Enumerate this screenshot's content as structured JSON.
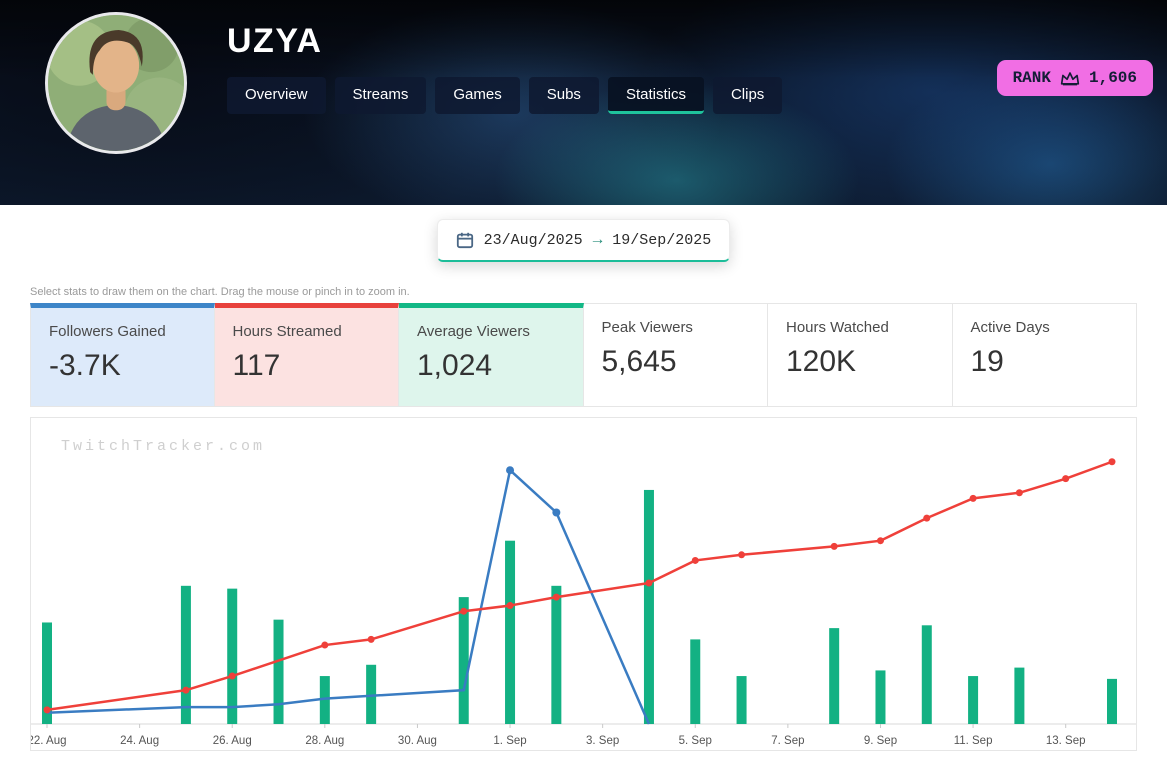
{
  "header": {
    "title": "UZYA",
    "tabs": [
      {
        "label": "Overview",
        "active": false
      },
      {
        "label": "Streams",
        "active": false
      },
      {
        "label": "Games",
        "active": false
      },
      {
        "label": "Subs",
        "active": false
      },
      {
        "label": "Statistics",
        "active": true
      },
      {
        "label": "Clips",
        "active": false
      }
    ],
    "rank": {
      "label": "RANK",
      "value": "1,606",
      "badge_color": "#f16ee4"
    }
  },
  "date_range": {
    "start": "23/Aug/2025",
    "arrow": "→",
    "end": "19/Sep/2025",
    "accent_color": "#1cbd99"
  },
  "instruction": "Select stats to draw them on the chart. Drag the mouse or pinch in to zoom in.",
  "stats": [
    {
      "label": "Followers Gained",
      "value": "-3.7K",
      "selected": true,
      "accent_color": "#3d85c8",
      "bg_color": "#ddeafa"
    },
    {
      "label": "Hours Streamed",
      "value": "117",
      "selected": true,
      "accent_color": "#e8413c",
      "bg_color": "#fce2e1"
    },
    {
      "label": "Average Viewers",
      "value": "1,024",
      "selected": true,
      "accent_color": "#12b886",
      "bg_color": "#def5ec"
    },
    {
      "label": "Peak Viewers",
      "value": "5,645",
      "selected": false
    },
    {
      "label": "Hours Watched",
      "value": "120K",
      "selected": false
    },
    {
      "label": "Active Days",
      "value": "19",
      "selected": false
    }
  ],
  "watermark": "TwitchTracker.com",
  "chart_data": {
    "type": "bar",
    "title": "",
    "xlabel": "",
    "ylabel": "",
    "note": "No y-axis shown on screen; series values are relative units (percent of plot height).",
    "ylim": [
      0,
      100
    ],
    "grid": false,
    "legend": "none",
    "x": [
      "22 Aug",
      "23 Aug",
      "24 Aug",
      "25 Aug",
      "26 Aug",
      "27 Aug",
      "28 Aug",
      "29 Aug",
      "30 Aug",
      "31 Aug",
      "1 Sep",
      "2 Sep",
      "3 Sep",
      "4 Sep",
      "5 Sep",
      "6 Sep",
      "7 Sep",
      "8 Sep",
      "9 Sep",
      "10 Sep",
      "11 Sep",
      "12 Sep",
      "13 Sep",
      "14 Sep"
    ],
    "x_ticks": [
      {
        "index": 0,
        "label": "22. Aug"
      },
      {
        "index": 2,
        "label": "24. Aug"
      },
      {
        "index": 4,
        "label": "26. Aug"
      },
      {
        "index": 6,
        "label": "28. Aug"
      },
      {
        "index": 8,
        "label": "30. Aug"
      },
      {
        "index": 10,
        "label": "1. Sep"
      },
      {
        "index": 12,
        "label": "3. Sep"
      },
      {
        "index": 14,
        "label": "5. Sep"
      },
      {
        "index": 16,
        "label": "7. Sep"
      },
      {
        "index": 18,
        "label": "9. Sep"
      },
      {
        "index": 20,
        "label": "11. Sep"
      },
      {
        "index": 22,
        "label": "13. Sep"
      }
    ],
    "series": [
      {
        "name": "Average Viewers",
        "type": "bar",
        "color": "#13b183",
        "values": [
          36,
          null,
          null,
          49,
          48,
          37,
          17,
          21,
          null,
          45,
          65,
          49,
          null,
          83,
          30,
          17,
          null,
          34,
          19,
          35,
          17,
          20,
          null,
          16
        ]
      },
      {
        "name": "Followers Gained",
        "type": "line",
        "color": "#3a7cc2",
        "dots": false,
        "points": [
          {
            "x": 0,
            "y": 4
          },
          {
            "x": 3,
            "y": 6
          },
          {
            "x": 4,
            "y": 6
          },
          {
            "x": 5,
            "y": 7
          },
          {
            "x": 6,
            "y": 9
          },
          {
            "x": 7,
            "y": 10
          },
          {
            "x": 9,
            "y": 12
          },
          {
            "x": 10,
            "y": 90,
            "dot": true
          },
          {
            "x": 11,
            "y": 75,
            "dot": true
          },
          {
            "x": 13,
            "y": 0
          }
        ]
      },
      {
        "name": "Hours Streamed",
        "type": "line",
        "color": "#ef403a",
        "dots": true,
        "points": [
          {
            "x": 0,
            "y": 5
          },
          {
            "x": 3,
            "y": 12
          },
          {
            "x": 4,
            "y": 17
          },
          {
            "x": 6,
            "y": 28
          },
          {
            "x": 7,
            "y": 30
          },
          {
            "x": 9,
            "y": 40
          },
          {
            "x": 10,
            "y": 42
          },
          {
            "x": 11,
            "y": 45
          },
          {
            "x": 13,
            "y": 50
          },
          {
            "x": 14,
            "y": 58
          },
          {
            "x": 15,
            "y": 60
          },
          {
            "x": 17,
            "y": 63
          },
          {
            "x": 18,
            "y": 65
          },
          {
            "x": 19,
            "y": 73
          },
          {
            "x": 20,
            "y": 80
          },
          {
            "x": 21,
            "y": 82
          },
          {
            "x": 22,
            "y": 87
          },
          {
            "x": 23,
            "y": 93
          }
        ]
      }
    ]
  }
}
